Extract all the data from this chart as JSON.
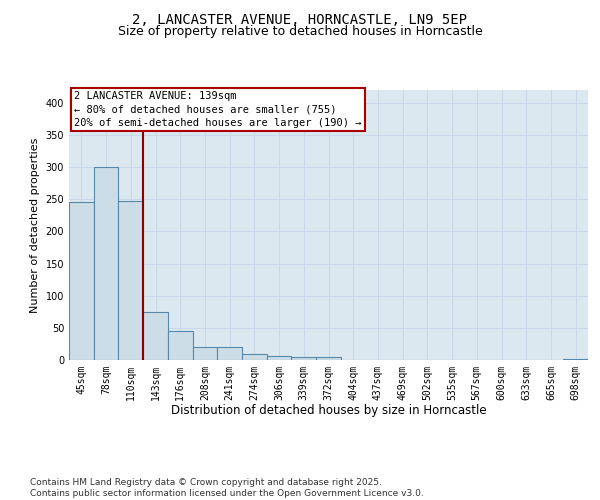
{
  "title1": "2, LANCASTER AVENUE, HORNCASTLE, LN9 5EP",
  "title2": "Size of property relative to detached houses in Horncastle",
  "xlabel": "Distribution of detached houses by size in Horncastle",
  "ylabel": "Number of detached properties",
  "categories": [
    "45sqm",
    "78sqm",
    "110sqm",
    "143sqm",
    "176sqm",
    "208sqm",
    "241sqm",
    "274sqm",
    "306sqm",
    "339sqm",
    "372sqm",
    "404sqm",
    "437sqm",
    "469sqm",
    "502sqm",
    "535sqm",
    "567sqm",
    "600sqm",
    "633sqm",
    "665sqm",
    "698sqm"
  ],
  "values": [
    245,
    300,
    248,
    75,
    45,
    20,
    20,
    10,
    7,
    5,
    4,
    0,
    0,
    0,
    0,
    0,
    0,
    0,
    0,
    0,
    2
  ],
  "bar_color": "#ccdde8",
  "bar_edge_color": "#5588aa",
  "grid_color": "#c8d8e8",
  "background_color": "#dce8f0",
  "vline_x": 2.5,
  "vline_color": "#8b0000",
  "annotation_text": "2 LANCASTER AVENUE: 139sqm\n← 80% of detached houses are smaller (755)\n20% of semi-detached houses are larger (190) →",
  "annotation_box_edgecolor": "#aa0000",
  "ylim": [
    0,
    420
  ],
  "yticks": [
    0,
    50,
    100,
    150,
    200,
    250,
    300,
    350,
    400
  ],
  "footer": "Contains HM Land Registry data © Crown copyright and database right 2025.\nContains public sector information licensed under the Open Government Licence v3.0.",
  "title1_fontsize": 10,
  "title2_fontsize": 9,
  "xlabel_fontsize": 8.5,
  "ylabel_fontsize": 8,
  "tick_fontsize": 7,
  "annotation_fontsize": 7.5,
  "footer_fontsize": 6.5
}
